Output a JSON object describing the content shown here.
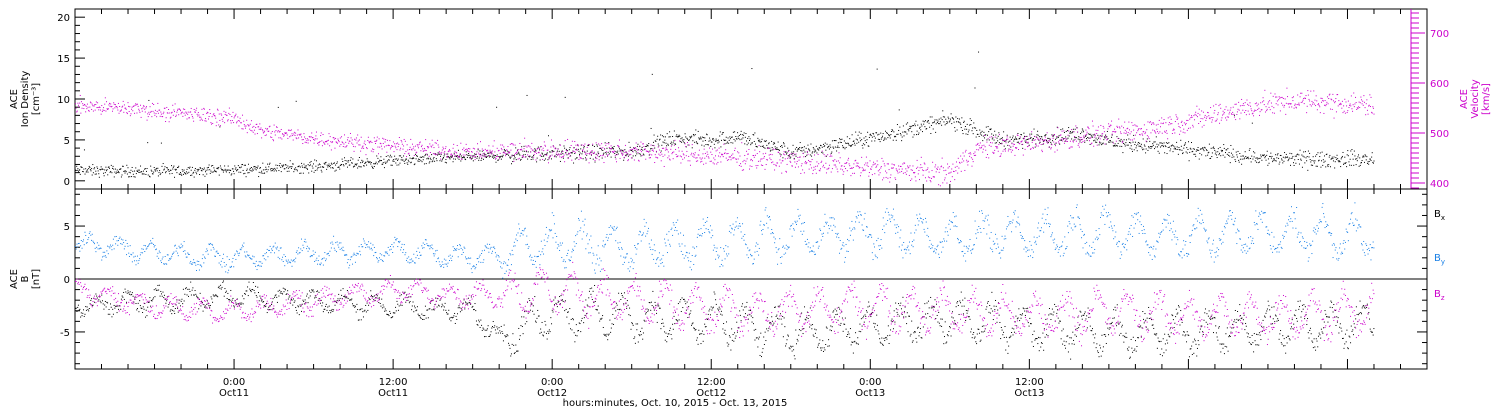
{
  "chart_data": [
    {
      "type": "scatter",
      "panel": "top",
      "ylabel_left": [
        "ACE",
        "Ion Density",
        "[cm⁻³]"
      ],
      "ylabel_right": [
        "ACE",
        "Velocity",
        "[km/s]"
      ],
      "y_left_range": [
        -1,
        21
      ],
      "y_left_ticks": [
        "0",
        "5",
        "10",
        "15",
        "20"
      ],
      "y_right_range": [
        388,
        748
      ],
      "y_right_ticks": [
        "400",
        "500",
        "600",
        "700"
      ],
      "x_hours_range": [
        -36,
        66
      ],
      "series": [
        {
          "name": "Ion Density",
          "axis": "left",
          "color": "#000000",
          "keypoints": [
            [
              -36,
              1.3
            ],
            [
              -30,
              1.2
            ],
            [
              -24,
              1.4
            ],
            [
              -18,
              1.8
            ],
            [
              -12,
              2.5
            ],
            [
              -6,
              3.0
            ],
            [
              0,
              3.4
            ],
            [
              6,
              3.6
            ],
            [
              9,
              5.2
            ],
            [
              12,
              5.0
            ],
            [
              14,
              5.5
            ],
            [
              16,
              4.5
            ],
            [
              18,
              3.5
            ],
            [
              20,
              4.0
            ],
            [
              24,
              5.2
            ],
            [
              30,
              7.5
            ],
            [
              34,
              5.0
            ],
            [
              36,
              5.2
            ],
            [
              40,
              5.8
            ],
            [
              42,
              4.8
            ],
            [
              46,
              4.2
            ],
            [
              50,
              3.5
            ],
            [
              54,
              2.8
            ],
            [
              58,
              2.6
            ],
            [
              60,
              2.7
            ],
            [
              62,
              2.6
            ]
          ]
        },
        {
          "name": "Velocity",
          "axis": "right",
          "color": "#cc00cc",
          "keypoints": [
            [
              -36,
              555
            ],
            [
              -32,
              550
            ],
            [
              -30,
              545
            ],
            [
              -26,
              535
            ],
            [
              -24,
              530
            ],
            [
              -22,
              505
            ],
            [
              -18,
              490
            ],
            [
              -14,
              480
            ],
            [
              -10,
              470
            ],
            [
              -6,
              462
            ],
            [
              -2,
              465
            ],
            [
              0,
              465
            ],
            [
              4,
              465
            ],
            [
              8,
              462
            ],
            [
              12,
              455
            ],
            [
              16,
              450
            ],
            [
              20,
              440
            ],
            [
              24,
              430
            ],
            [
              30,
              420
            ],
            [
              32,
              470
            ],
            [
              36,
              480
            ],
            [
              40,
              495
            ],
            [
              44,
              505
            ],
            [
              48,
              525
            ],
            [
              52,
              550
            ],
            [
              56,
              565
            ],
            [
              60,
              560
            ],
            [
              62,
              555
            ]
          ]
        }
      ]
    },
    {
      "type": "scatter",
      "panel": "bottom",
      "ylabel": [
        "ACE",
        "B",
        "[nT]"
      ],
      "y_range": [
        -8.5,
        8.5
      ],
      "y_ticks": [
        "-5",
        "0",
        "5"
      ],
      "x_hours_range": [
        -36,
        66
      ],
      "x_ticks": [
        {
          "hours": -24,
          "top": "0:00",
          "bottom": "Oct11"
        },
        {
          "hours": -12,
          "top": "12:00",
          "bottom": "Oct11"
        },
        {
          "hours": 0,
          "top": "0:00",
          "bottom": "Oct12"
        },
        {
          "hours": 12,
          "top": "12:00",
          "bottom": "Oct12"
        },
        {
          "hours": 24,
          "top": "0:00",
          "bottom": "Oct13"
        },
        {
          "hours": 36,
          "top": "12:00",
          "bottom": "Oct13"
        }
      ],
      "xlabel": "hours:minutes, Oct. 10, 2015 - Oct. 13, 2015",
      "series": [
        {
          "name": "B",
          "sub": "x",
          "color": "#000000",
          "keypoints": [
            [
              -36,
              -2.5
            ],
            [
              -30,
              -2.0
            ],
            [
              -24,
              -1.5
            ],
            [
              -18,
              -2.0
            ],
            [
              -12,
              -2.5
            ],
            [
              -6,
              -3.0
            ],
            [
              -4,
              -5.5
            ],
            [
              0,
              -3.0
            ],
            [
              6,
              -3.5
            ],
            [
              12,
              -4.0
            ],
            [
              18,
              -5.0
            ],
            [
              24,
              -4.5
            ],
            [
              30,
              -3.5
            ],
            [
              36,
              -4.5
            ],
            [
              42,
              -5.0
            ],
            [
              48,
              -5.0
            ],
            [
              54,
              -4.5
            ],
            [
              62,
              -4.0
            ]
          ]
        },
        {
          "name": "B",
          "sub": "y",
          "color": "#1a80e6",
          "keypoints": [
            [
              -36,
              3.5
            ],
            [
              -30,
              2.5
            ],
            [
              -24,
              2.0
            ],
            [
              -18,
              2.5
            ],
            [
              -12,
              2.8
            ],
            [
              -6,
              2.0
            ],
            [
              -2,
              3.0
            ],
            [
              0,
              3.5
            ],
            [
              6,
              3.0
            ],
            [
              12,
              3.5
            ],
            [
              18,
              4.0
            ],
            [
              24,
              4.5
            ],
            [
              30,
              4.0
            ],
            [
              36,
              4.2
            ],
            [
              42,
              4.5
            ],
            [
              48,
              4.0
            ],
            [
              54,
              4.5
            ],
            [
              62,
              4.0
            ]
          ]
        },
        {
          "name": "B",
          "sub": "z",
          "color": "#cc00cc",
          "keypoints": [
            [
              -36,
              -1.0
            ],
            [
              -30,
              -2.5
            ],
            [
              -24,
              -3.0
            ],
            [
              -18,
              -2.0
            ],
            [
              -12,
              -1.0
            ],
            [
              -6,
              -1.5
            ],
            [
              0,
              -1.0
            ],
            [
              6,
              -2.0
            ],
            [
              12,
              -3.0
            ],
            [
              18,
              -3.0
            ],
            [
              24,
              -2.5
            ],
            [
              30,
              -3.0
            ],
            [
              36,
              -3.5
            ],
            [
              42,
              -3.0
            ],
            [
              48,
              -3.5
            ],
            [
              54,
              -3.5
            ],
            [
              62,
              -3.0
            ]
          ]
        }
      ]
    }
  ]
}
